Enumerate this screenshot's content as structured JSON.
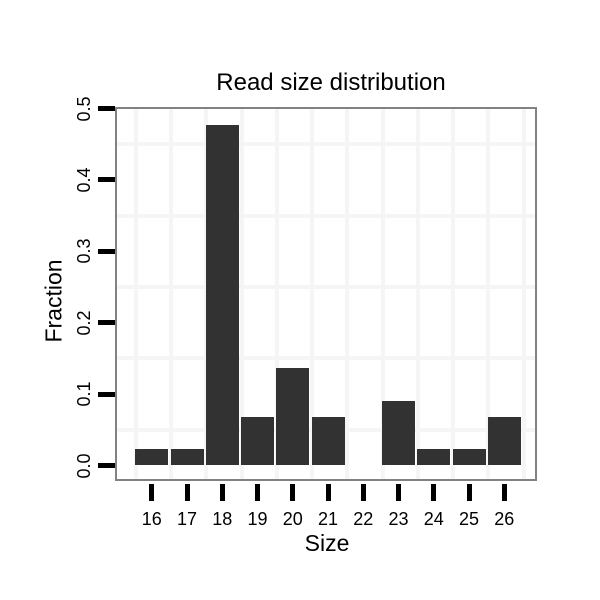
{
  "chart_data": {
    "type": "bar",
    "title": "Read size distribution",
    "xlabel": "Size",
    "ylabel": "Fraction",
    "categories": [
      16,
      17,
      18,
      19,
      20,
      21,
      22,
      23,
      24,
      25,
      26
    ],
    "values": [
      0.023,
      0.023,
      0.477,
      0.068,
      0.136,
      0.068,
      0,
      0.091,
      0.023,
      0.023,
      0.068
    ],
    "ylim": [
      0,
      0.5
    ],
    "yticks": [
      0,
      0.1,
      0.2,
      0.3,
      0.4,
      0.5
    ],
    "ytick_labels": [
      "0.0",
      "0.1",
      "0.2",
      "0.3",
      "0.4",
      "0.5"
    ],
    "grid": {
      "visible": true,
      "horizontal_lines_at": [
        0.05,
        0.15,
        0.25,
        0.35,
        0.45
      ],
      "vertical_lines": "one faint line per category, offset left of each bar"
    },
    "legend": "none",
    "colors": {
      "bar": "#323232",
      "panel_border": "#828282",
      "gridline": "#f5f5f5",
      "tick": "#000000",
      "text": "#000000",
      "background": "#ffffff"
    }
  }
}
